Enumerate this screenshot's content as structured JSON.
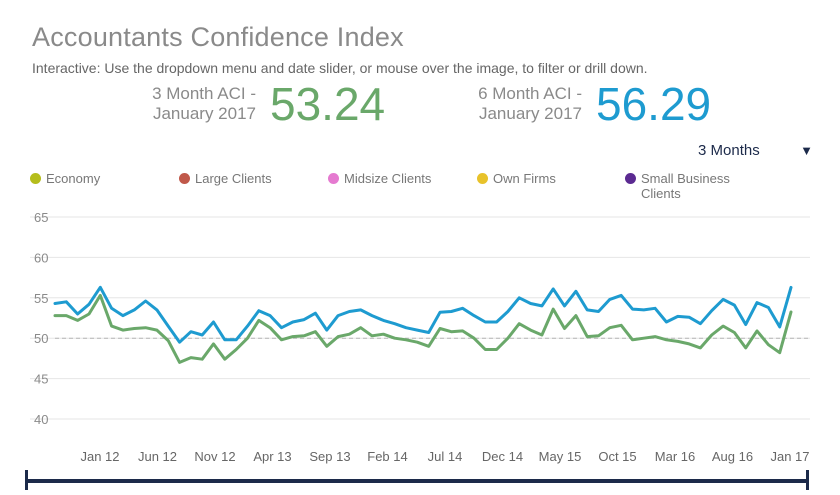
{
  "header": {
    "title": "Accountants Confidence Index",
    "subtitle": "Interactive: Use the dropdown menu and date slider, or mouse over the image, to filter or drill down."
  },
  "kpis": [
    {
      "label_line1": "3 Month ACI -",
      "label_line2": "January 2017",
      "value": "53.24",
      "color": "#6aa86a"
    },
    {
      "label_line1": "6 Month ACI -",
      "label_line2": "January 2017",
      "value": "56.29",
      "color": "#1e9bd0"
    }
  ],
  "dropdown": {
    "selected": "3 Months",
    "arrow": "▼"
  },
  "legend": [
    {
      "label": "Economy",
      "color": "#b5bd1c"
    },
    {
      "label": "Large Clients",
      "color": "#c0584a"
    },
    {
      "label": "Midsize Clients",
      "color": "#e57ad0"
    },
    {
      "label": "Own Firms",
      "color": "#e8c22a"
    },
    {
      "label": "Small Business Clients",
      "color": "#5b2a91"
    }
  ],
  "chart_data": {
    "type": "line",
    "title": "Accountants Confidence Index",
    "ylim": [
      40,
      65
    ],
    "y_ticks": [
      40,
      45,
      50,
      55,
      60,
      65
    ],
    "reference_line": 50,
    "x_tick_labels": [
      "Jan 12",
      "Jun 12",
      "Nov 12",
      "Apr 13",
      "Sep 13",
      "Feb 14",
      "Jul 14",
      "Dec 14",
      "May 15",
      "Oct 15",
      "Mar 16",
      "Aug 16",
      "Jan 17"
    ],
    "grid": true,
    "series": [
      {
        "name": "6 Month ACI",
        "color": "#1e9bd0",
        "values": [
          54.3,
          54.5,
          53.0,
          54.2,
          56.3,
          53.7,
          52.8,
          53.5,
          54.6,
          53.5,
          51.5,
          49.5,
          50.8,
          50.4,
          52.0,
          49.8,
          49.8,
          51.5,
          53.4,
          52.8,
          51.3,
          52.0,
          52.3,
          53.1,
          51.0,
          52.8,
          53.3,
          53.5,
          52.8,
          52.2,
          51.8,
          51.3,
          51.0,
          50.7,
          53.2,
          53.3,
          53.7,
          52.8,
          52.0,
          52.0,
          53.3,
          55.0,
          54.3,
          54.0,
          56.1,
          54.0,
          55.8,
          53.5,
          53.3,
          54.8,
          55.3,
          53.6,
          53.5,
          53.7,
          52.0,
          52.7,
          52.6,
          51.8,
          53.4,
          54.8,
          54.1,
          51.7,
          54.4,
          53.8,
          51.4,
          56.29
        ]
      },
      {
        "name": "3 Month ACI",
        "color": "#6aa86a",
        "values": [
          52.8,
          52.8,
          52.2,
          53.0,
          55.3,
          51.5,
          51.0,
          51.2,
          51.3,
          51.0,
          49.7,
          47.0,
          47.6,
          47.4,
          49.3,
          47.4,
          48.6,
          50.0,
          52.2,
          51.3,
          49.8,
          50.2,
          50.3,
          50.8,
          49.0,
          50.2,
          50.5,
          51.3,
          50.3,
          50.5,
          50.0,
          49.8,
          49.5,
          49.0,
          51.2,
          50.8,
          50.9,
          50.0,
          48.6,
          48.6,
          50.0,
          51.8,
          51.0,
          50.4,
          53.6,
          51.2,
          52.8,
          50.2,
          50.3,
          51.3,
          51.6,
          49.8,
          50.0,
          50.2,
          49.8,
          49.6,
          49.3,
          48.8,
          50.4,
          51.5,
          50.7,
          48.8,
          50.9,
          49.2,
          48.2,
          53.24
        ]
      }
    ]
  }
}
